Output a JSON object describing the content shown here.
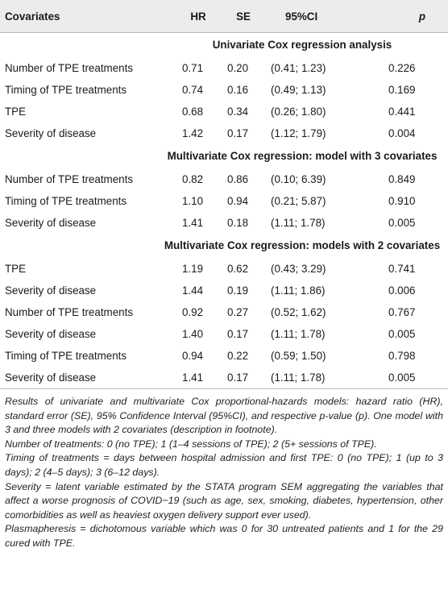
{
  "table": {
    "headers": {
      "covariates": "Covariates",
      "hr": "HR",
      "se": "SE",
      "ci": "95%CI",
      "p": "p"
    },
    "sections": [
      {
        "title": "Univariate Cox regression analysis",
        "rows": [
          {
            "covariate": "Number of TPE treatments",
            "hr": "0.71",
            "se": "0.20",
            "ci": "(0.41; 1.23)",
            "p": "0.226"
          },
          {
            "covariate": "Timing of TPE treatments",
            "hr": "0.74",
            "se": "0.16",
            "ci": "(0.49; 1.13)",
            "p": "0.169"
          },
          {
            "covariate": "TPE",
            "hr": "0.68",
            "se": "0.34",
            "ci": "(0.26; 1.80)",
            "p": "0.441"
          },
          {
            "covariate": "Severity of disease",
            "hr": "1.42",
            "se": "0.17",
            "ci": "(1.12; 1.79)",
            "p": "0.004"
          }
        ]
      },
      {
        "title": "Multivariate Cox regression: model with 3 covariates",
        "rows": [
          {
            "covariate": "Number of TPE treatments",
            "hr": "0.82",
            "se": "0.86",
            "ci": "(0.10; 6.39)",
            "p": "0.849"
          },
          {
            "covariate": "Timing of TPE treatments",
            "hr": "1.10",
            "se": "0.94",
            "ci": "(0.21; 5.87)",
            "p": "0.910"
          },
          {
            "covariate": "Severity of disease",
            "hr": "1.41",
            "se": "0.18",
            "ci": "(1.11; 1.78)",
            "p": "0.005"
          }
        ]
      },
      {
        "title": "Multivariate Cox regression: models with 2 covariates",
        "rows": [
          {
            "covariate": "TPE",
            "hr": "1.19",
            "se": "0.62",
            "ci": "(0.43; 3.29)",
            "p": "0.741"
          },
          {
            "covariate": "Severity of disease",
            "hr": "1.44",
            "se": "0.19",
            "ci": "(1.11; 1.86)",
            "p": "0.006"
          },
          {
            "covariate": "Number of TPE treatments",
            "hr": "0.92",
            "se": "0.27",
            "ci": "(0.52; 1.62)",
            "p": "0.767"
          },
          {
            "covariate": "Severity of disease",
            "hr": "1.40",
            "se": "0.17",
            "ci": "(1.11; 1.78)",
            "p": "0.005"
          },
          {
            "covariate": "Timing of TPE treatments",
            "hr": "0.94",
            "se": "0.22",
            "ci": "(0.59; 1.50)",
            "p": "0.798"
          },
          {
            "covariate": "Severity of disease",
            "hr": "1.41",
            "se": "0.17",
            "ci": "(1.11; 1.78)",
            "p": "0.005"
          }
        ]
      }
    ]
  },
  "footnotes": [
    "Results of univariate and multivariate Cox proportional-hazards models: hazard ratio (HR), standard error (SE), 95% Confidence Interval (95%CI), and respective p-value (p). One model with 3 and three models with 2 covariates (description in footnote).",
    "Number of treatments: 0 (no TPE); 1 (1–4 sessions of TPE); 2 (5+ sessions of TPE).",
    "Timing of treatments = days between hospital admission and first TPE: 0 (no TPE); 1 (up to 3 days); 2 (4–5 days); 3 (6–12 days).",
    "Severity = latent variable estimated by the STATA program SEM aggregating the variables that affect a worse prognosis of COVID−19 (such as age, sex, smoking, diabetes, hypertension, other comorbidities as well as heaviest oxygen delivery support ever used).",
    "Plasmapheresis = dichotomous variable which was 0 for 30 untreated patients and 1 for the 29 cured with TPE."
  ]
}
